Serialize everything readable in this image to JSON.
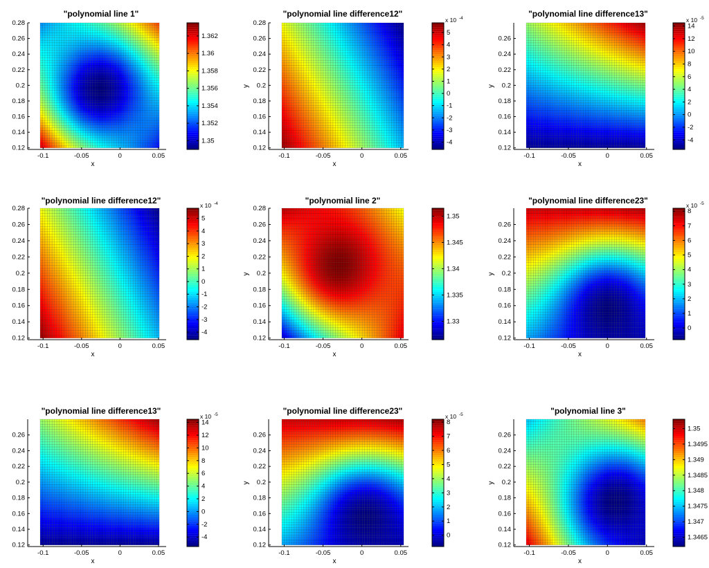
{
  "chart_data": [
    {
      "type": "heatmap",
      "title": "\"polynomial line 1\"",
      "xlabel": "x",
      "ylabel": "",
      "xlim": [
        -0.12,
        0.06
      ],
      "ylim": [
        0.118,
        0.28
      ],
      "x_ticks": [
        "-0.1",
        "-0.05",
        "0",
        "0.05"
      ],
      "y_ticks": [
        "0.12",
        "0.14",
        "0.16",
        "0.18",
        "0.2",
        "0.22",
        "0.24",
        "0.26",
        "0.28"
      ],
      "data_x_range": [
        -0.1,
        0.06
      ],
      "data_y_range": [
        0.12,
        0.28
      ],
      "colormap": "jet",
      "colorbar": {
        "range": [
          1.349,
          1.3635
        ],
        "ticks": [
          "1.35",
          "1.352",
          "1.354",
          "1.356",
          "1.358",
          "1.36",
          "1.362"
        ],
        "exponent": ""
      },
      "field": {
        "kind": "bowl",
        "min_at": [
          -0.02,
          0.195
        ]
      },
      "corner_values": {
        "x-0.1_y0.12": 1.3635,
        "x0.06_y0.28": 1.3615,
        "x-0.1_y0.28": 1.353,
        "x0.06_y0.12": 1.351
      }
    },
    {
      "type": "heatmap",
      "title": "\"polynomial line difference12\"",
      "xlabel": "x",
      "ylabel": "y",
      "xlim": [
        -0.12,
        0.06
      ],
      "ylim": [
        0.118,
        0.28
      ],
      "x_ticks": [
        "-0.1",
        "-0.05",
        "0",
        "0.05"
      ],
      "y_ticks": [
        "0.12",
        "0.14",
        "0.16",
        "0.18",
        "0.2",
        "0.22",
        "0.24",
        "0.26",
        "0.28"
      ],
      "data_x_range": [
        -0.1,
        0.06
      ],
      "data_y_range": [
        0.12,
        0.28
      ],
      "colormap": "jet",
      "colorbar": {
        "range": [
          -4.6,
          5.8
        ],
        "ticks": [
          "-4",
          "-3",
          "-2",
          "-1",
          "0",
          "1",
          "2",
          "3",
          "4",
          "5"
        ],
        "exponent": "-4"
      },
      "field": {
        "kind": "plane"
      },
      "corner_values": {
        "x-0.1_y0.12": 5.6,
        "x0.06_y0.28": -4.5,
        "x-0.1_y0.28": 1.8,
        "x0.06_y0.12": -1.4
      }
    },
    {
      "type": "heatmap",
      "title": "\"polynomial line difference13\"",
      "xlabel": "x",
      "ylabel": "y",
      "xlim": [
        -0.12,
        0.06
      ],
      "ylim": [
        0.118,
        0.28
      ],
      "x_ticks": [
        "-0.1",
        "-0.05",
        "0",
        "0.05"
      ],
      "y_ticks": [
        "0.12",
        "0.14",
        "0.16",
        "0.18",
        "0.2",
        "0.22",
        "0.24",
        "0.26"
      ],
      "data_x_range": [
        -0.1,
        0.06
      ],
      "data_y_range": [
        0.12,
        0.28
      ],
      "colormap": "jet",
      "colorbar": {
        "range": [
          -5.5,
          14.5
        ],
        "ticks": [
          "-4",
          "-2",
          "0",
          "2",
          "4",
          "6",
          "8",
          "10",
          "12",
          "14"
        ],
        "exponent": "-5"
      },
      "field": {
        "kind": "bilinear"
      },
      "corner_values": {
        "x-0.1_y0.12": -5,
        "x0.06_y0.28": 14,
        "x-0.1_y0.28": 5,
        "x0.06_y0.12": -5
      }
    },
    {
      "type": "heatmap",
      "title": "\"polynomial line difference12\"",
      "xlabel": "x",
      "ylabel": "",
      "xlim": [
        -0.12,
        0.06
      ],
      "ylim": [
        0.118,
        0.28
      ],
      "x_ticks": [
        "-0.1",
        "-0.05",
        "0",
        "0.05"
      ],
      "y_ticks": [
        "0.12",
        "0.14",
        "0.16",
        "0.18",
        "0.2",
        "0.22",
        "0.24",
        "0.26",
        "0.28"
      ],
      "data_x_range": [
        -0.1,
        0.06
      ],
      "data_y_range": [
        0.12,
        0.28
      ],
      "colormap": "jet",
      "colorbar": {
        "range": [
          -4.6,
          5.8
        ],
        "ticks": [
          "-4",
          "-3",
          "-2",
          "-1",
          "0",
          "1",
          "2",
          "3",
          "4",
          "5"
        ],
        "exponent": "-4"
      },
      "field": {
        "kind": "plane"
      },
      "corner_values": {
        "x-0.1_y0.12": 5.6,
        "x0.06_y0.28": -4.5,
        "x-0.1_y0.28": 1.8,
        "x0.06_y0.12": -1.4
      }
    },
    {
      "type": "heatmap",
      "title": "\"polynomial line 2\"",
      "xlabel": "x",
      "ylabel": "y",
      "xlim": [
        -0.12,
        0.06
      ],
      "ylim": [
        0.118,
        0.28
      ],
      "x_ticks": [
        "-0.1",
        "-0.05",
        "0",
        "0.05"
      ],
      "y_ticks": [
        "0.12",
        "0.14",
        "0.16",
        "0.18",
        "0.2",
        "0.22",
        "0.24",
        "0.26",
        "0.28"
      ],
      "data_x_range": [
        -0.1,
        0.06
      ],
      "data_y_range": [
        0.12,
        0.28
      ],
      "colormap": "jet",
      "colorbar": {
        "range": [
          1.3265,
          1.3515
        ],
        "ticks": [
          "1.33",
          "1.335",
          "1.34",
          "1.345",
          "1.35"
        ],
        "exponent": ""
      },
      "field": {
        "kind": "dome",
        "max_at": [
          -0.025,
          0.21
        ]
      },
      "corner_values": {
        "x-0.1_y0.12": 1.327,
        "x0.06_y0.28": 1.341,
        "x-0.1_y0.28": 1.35,
        "x0.06_y0.12": 1.349
      }
    },
    {
      "type": "heatmap",
      "title": "\"polynomial line difference23\"",
      "xlabel": "x",
      "ylabel": "y",
      "xlim": [
        -0.12,
        0.06
      ],
      "ylim": [
        0.118,
        0.28
      ],
      "x_ticks": [
        "-0.1",
        "-0.05",
        "0",
        "0.05"
      ],
      "y_ticks": [
        "0.12",
        "0.14",
        "0.16",
        "0.18",
        "0.2",
        "0.22",
        "0.24",
        "0.26"
      ],
      "data_x_range": [
        -0.1,
        0.06
      ],
      "data_y_range": [
        0.12,
        0.28
      ],
      "colormap": "jet",
      "colorbar": {
        "range": [
          -0.8,
          8.2
        ],
        "ticks": [
          "0",
          "1",
          "2",
          "3",
          "4",
          "5",
          "6",
          "7",
          "8"
        ],
        "exponent": "-5"
      },
      "field": {
        "kind": "valley",
        "min_at": [
          0.01,
          0.155
        ]
      },
      "corner_values": {
        "x-0.1_y0.12": 2,
        "x0.06_y0.28": 8,
        "x-0.1_y0.28": 7.5,
        "x0.06_y0.12": 0
      }
    },
    {
      "type": "heatmap",
      "title": "\"polynomial line difference13\"",
      "xlabel": "x",
      "ylabel": "",
      "xlim": [
        -0.12,
        0.06
      ],
      "ylim": [
        0.118,
        0.28
      ],
      "x_ticks": [
        "-0.1",
        "-0.05",
        "0",
        "0.05"
      ],
      "y_ticks": [
        "0.12",
        "0.14",
        "0.16",
        "0.18",
        "0.2",
        "0.22",
        "0.24",
        "0.26"
      ],
      "data_x_range": [
        -0.1,
        0.06
      ],
      "data_y_range": [
        0.12,
        0.28
      ],
      "colormap": "jet",
      "colorbar": {
        "range": [
          -5.5,
          14.5
        ],
        "ticks": [
          "-4",
          "-2",
          "0",
          "2",
          "4",
          "6",
          "8",
          "10",
          "12",
          "14"
        ],
        "exponent": "-5"
      },
      "field": {
        "kind": "bilinear"
      },
      "corner_values": {
        "x-0.1_y0.12": -5,
        "x0.06_y0.28": 14,
        "x-0.1_y0.28": 5,
        "x0.06_y0.12": -5
      }
    },
    {
      "type": "heatmap",
      "title": "\"polynomial line difference23\"",
      "xlabel": "x",
      "ylabel": "y",
      "xlim": [
        -0.12,
        0.06
      ],
      "ylim": [
        0.118,
        0.28
      ],
      "x_ticks": [
        "-0.1",
        "-0.05",
        "0",
        "0.05"
      ],
      "y_ticks": [
        "0.12",
        "0.14",
        "0.16",
        "0.18",
        "0.2",
        "0.22",
        "0.24",
        "0.26"
      ],
      "data_x_range": [
        -0.1,
        0.06
      ],
      "data_y_range": [
        0.12,
        0.28
      ],
      "colormap": "jet",
      "colorbar": {
        "range": [
          -0.8,
          8.2
        ],
        "ticks": [
          "0",
          "1",
          "2",
          "3",
          "4",
          "5",
          "6",
          "7",
          "8"
        ],
        "exponent": "-5"
      },
      "field": {
        "kind": "valley",
        "min_at": [
          0.01,
          0.155
        ]
      },
      "corner_values": {
        "x-0.1_y0.12": 2,
        "x0.06_y0.28": 8,
        "x-0.1_y0.28": 7.5,
        "x0.06_y0.12": 0
      }
    },
    {
      "type": "heatmap",
      "title": "\"polynomial line 3\"",
      "xlabel": "x",
      "ylabel": "y",
      "xlim": [
        -0.12,
        0.06
      ],
      "ylim": [
        0.118,
        0.28
      ],
      "x_ticks": [
        "-0.1",
        "-0.05",
        "0",
        "0.05"
      ],
      "y_ticks": [
        "0.12",
        "0.14",
        "0.16",
        "0.18",
        "0.2",
        "0.22",
        "0.24",
        "0.26"
      ],
      "data_x_range": [
        -0.1,
        0.06
      ],
      "data_y_range": [
        0.12,
        0.28
      ],
      "colormap": "jet",
      "colorbar": {
        "range": [
          1.3462,
          1.3503
        ],
        "ticks": [
          "1.3465",
          "1.347",
          "1.3475",
          "1.348",
          "1.3485",
          "1.349",
          "1.3495",
          "1.35"
        ],
        "exponent": ""
      },
      "field": {
        "kind": "bowl",
        "min_at": [
          0.02,
          0.175
        ]
      },
      "corner_values": {
        "x-0.1_y0.12": 1.35,
        "x0.06_y0.28": 1.3495,
        "x-0.1_y0.28": 1.3475,
        "x0.06_y0.12": 1.3465
      }
    }
  ]
}
